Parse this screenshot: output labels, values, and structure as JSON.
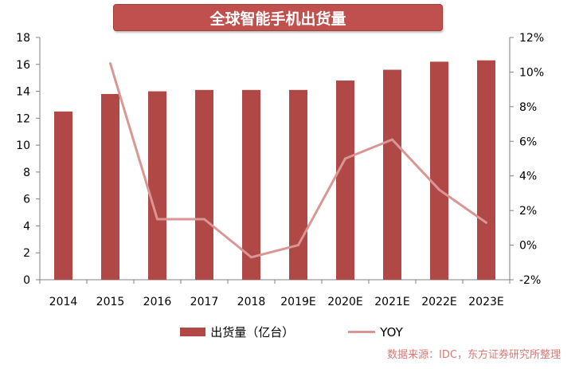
{
  "chart_data": {
    "type": "bar",
    "title": "全球智能手机出货量",
    "categories": [
      "2014",
      "2015",
      "2016",
      "2017",
      "2018",
      "2019E",
      "2020E",
      "2021E",
      "2022E",
      "2023E"
    ],
    "series": [
      {
        "name": "出货量（亿台）",
        "type": "bar",
        "axis": "left",
        "values": [
          12.5,
          13.8,
          14.0,
          14.1,
          14.1,
          14.1,
          14.8,
          15.6,
          16.2,
          16.3
        ]
      },
      {
        "name": "YOY",
        "type": "line",
        "axis": "right",
        "values": [
          null,
          10.5,
          1.5,
          1.5,
          -0.7,
          0.0,
          5.0,
          6.1,
          3.2,
          1.3
        ]
      }
    ],
    "ylim": [
      0,
      18
    ],
    "yticks": [
      "0",
      "2",
      "4",
      "6",
      "8",
      "10",
      "12",
      "14",
      "16",
      "18"
    ],
    "y2lim": [
      -2,
      12
    ],
    "y2ticks": [
      "-2%",
      "0%",
      "2%",
      "4%",
      "6%",
      "8%",
      "10%",
      "12%"
    ],
    "legend": "bottom",
    "grid": false,
    "colors": {
      "bar": "#b04845",
      "line": "#d99694",
      "title_bg": "#c0504d"
    }
  },
  "watermark": "数据来源：IDC，东方证券研究所整理"
}
